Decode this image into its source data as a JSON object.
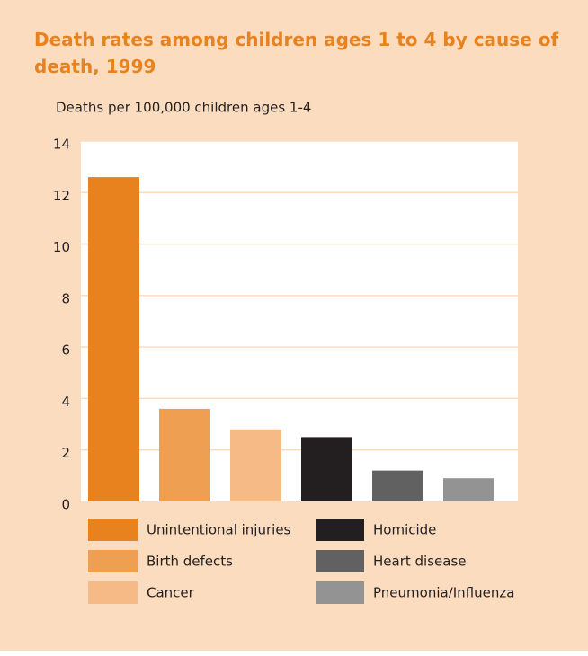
{
  "chart_data": {
    "type": "bar",
    "title": "Death rates among children ages 1 to 4 by cause of death, 1999",
    "y_axis_label": "Deaths per 100,000 children ages 1-4",
    "categories": [
      "Unintentional injuries",
      "Birth defects",
      "Cancer",
      "Homicide",
      "Heart disease",
      "Pneumonia/Influenza"
    ],
    "values": [
      12.6,
      3.6,
      2.8,
      2.5,
      1.2,
      0.9
    ],
    "colors": [
      "#e8821e",
      "#ef9f52",
      "#f5ba85",
      "#231f20",
      "#616161",
      "#939393"
    ],
    "ylim": [
      0,
      14
    ],
    "yticks": [
      0,
      2,
      4,
      6,
      8,
      10,
      12,
      14
    ],
    "grid": true
  }
}
